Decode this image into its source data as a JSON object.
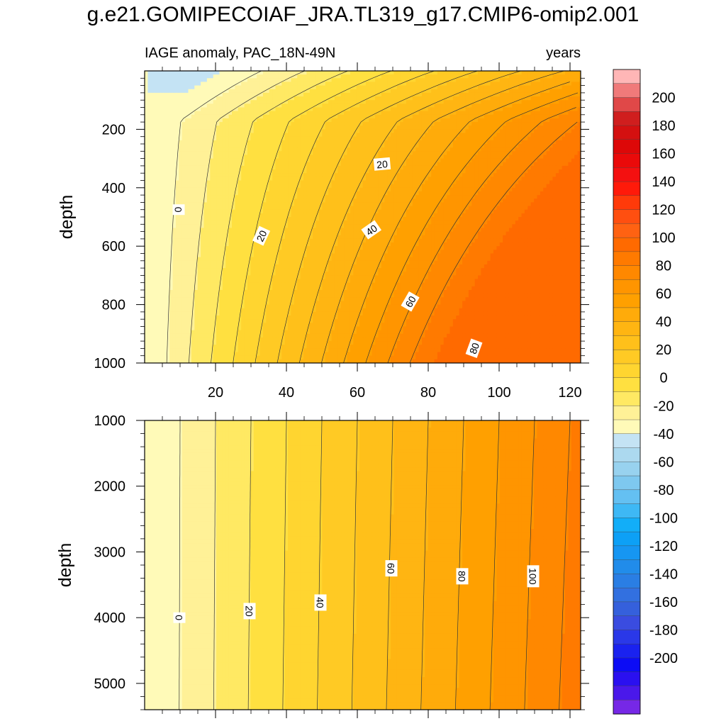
{
  "title": "g.e21.GOMIPECOIAF_JRA.TL319_g17.CMIP6-omip2.001",
  "chart_data": {
    "type": "contour",
    "variable": "IAGE anomaly",
    "subtitle_left": "IAGE anomaly, PAC_18N-49N",
    "units": "years",
    "x_range": [
      0,
      123
    ],
    "x_ticks": [
      20,
      40,
      60,
      80,
      100,
      120
    ],
    "x_tick_labels": [
      "20",
      "40",
      "60",
      "80",
      "100",
      "120"
    ],
    "contour_interval": 10,
    "panels": [
      {
        "name": "upper",
        "ylabel": "depth",
        "ylim": [
          0,
          1000
        ],
        "y_ticks": [
          200,
          400,
          600,
          800,
          1000
        ],
        "y_tick_labels": [
          "200",
          "400",
          "600",
          "800",
          "1000"
        ],
        "inline_labels": [
          {
            "text": "0",
            "x": 9.5,
            "y": 475,
            "angle": 90
          },
          {
            "text": "20",
            "x": 67,
            "y": 320,
            "angle": -5
          },
          {
            "text": "20",
            "x": 33,
            "y": 565,
            "angle": -65
          },
          {
            "text": "40",
            "x": 64,
            "y": 545,
            "angle": -35
          },
          {
            "text": "60",
            "x": 75,
            "y": 790,
            "angle": -60
          },
          {
            "text": "80",
            "x": 93,
            "y": 950,
            "angle": -70
          }
        ]
      },
      {
        "name": "lower",
        "ylabel": "depth",
        "ylim": [
          1000,
          5400
        ],
        "y_ticks": [
          1000,
          2000,
          3000,
          4000,
          5000
        ],
        "y_tick_labels": [
          "1000",
          "2000",
          "3000",
          "4000",
          "5000"
        ],
        "inline_labels": [
          {
            "text": "0",
            "x": 9.7,
            "y": 4000,
            "angle": 90
          },
          {
            "text": "20",
            "x": 29.5,
            "y": 3900,
            "angle": 90
          },
          {
            "text": "40",
            "x": 49.5,
            "y": 3770,
            "angle": 90
          },
          {
            "text": "60",
            "x": 69.5,
            "y": 3250,
            "angle": 90
          },
          {
            "text": "80",
            "x": 89.5,
            "y": 3370,
            "angle": 90
          },
          {
            "text": "100",
            "x": 109.5,
            "y": 3370,
            "angle": 90
          }
        ]
      }
    ],
    "colorbar": {
      "labels": [
        "200",
        "180",
        "160",
        "140",
        "120",
        "100",
        "80",
        "60",
        "40",
        "20",
        "0",
        "-20",
        "-40",
        "-60",
        "-80",
        "-100",
        "-120",
        "-140",
        "-160",
        "-180",
        "-200"
      ],
      "colors": [
        "#ffb6b6",
        "#f07a7a",
        "#e04848",
        "#d01e1e",
        "#d41010",
        "#dd0808",
        "#ea0a0a",
        "#f41010",
        "#ff1a0a",
        "#ff3a0a",
        "#ff4f10",
        "#ff6212",
        "#ff6a00",
        "#ff7a00",
        "#ff8800",
        "#ff9500",
        "#ffa000",
        "#ffab0a",
        "#ffb512",
        "#ffc01a",
        "#ffca24",
        "#ffd530",
        "#ffe040",
        "#ffe963",
        "#fff197",
        "#fffab8",
        "#c4e3f4",
        "#acd9ef",
        "#98d2ef",
        "#7ec8ef",
        "#64c0f2",
        "#3eb8f5",
        "#12aef8",
        "#0da0f6",
        "#1696f2",
        "#218cea",
        "#2a7ee4",
        "#3270e0",
        "#3560dc",
        "#3a4ce0",
        "#2a38e8",
        "#1a22ef",
        "#0c0cf5",
        "#2a10f0",
        "#4a18ea",
        "#7628e6"
      ]
    }
  }
}
